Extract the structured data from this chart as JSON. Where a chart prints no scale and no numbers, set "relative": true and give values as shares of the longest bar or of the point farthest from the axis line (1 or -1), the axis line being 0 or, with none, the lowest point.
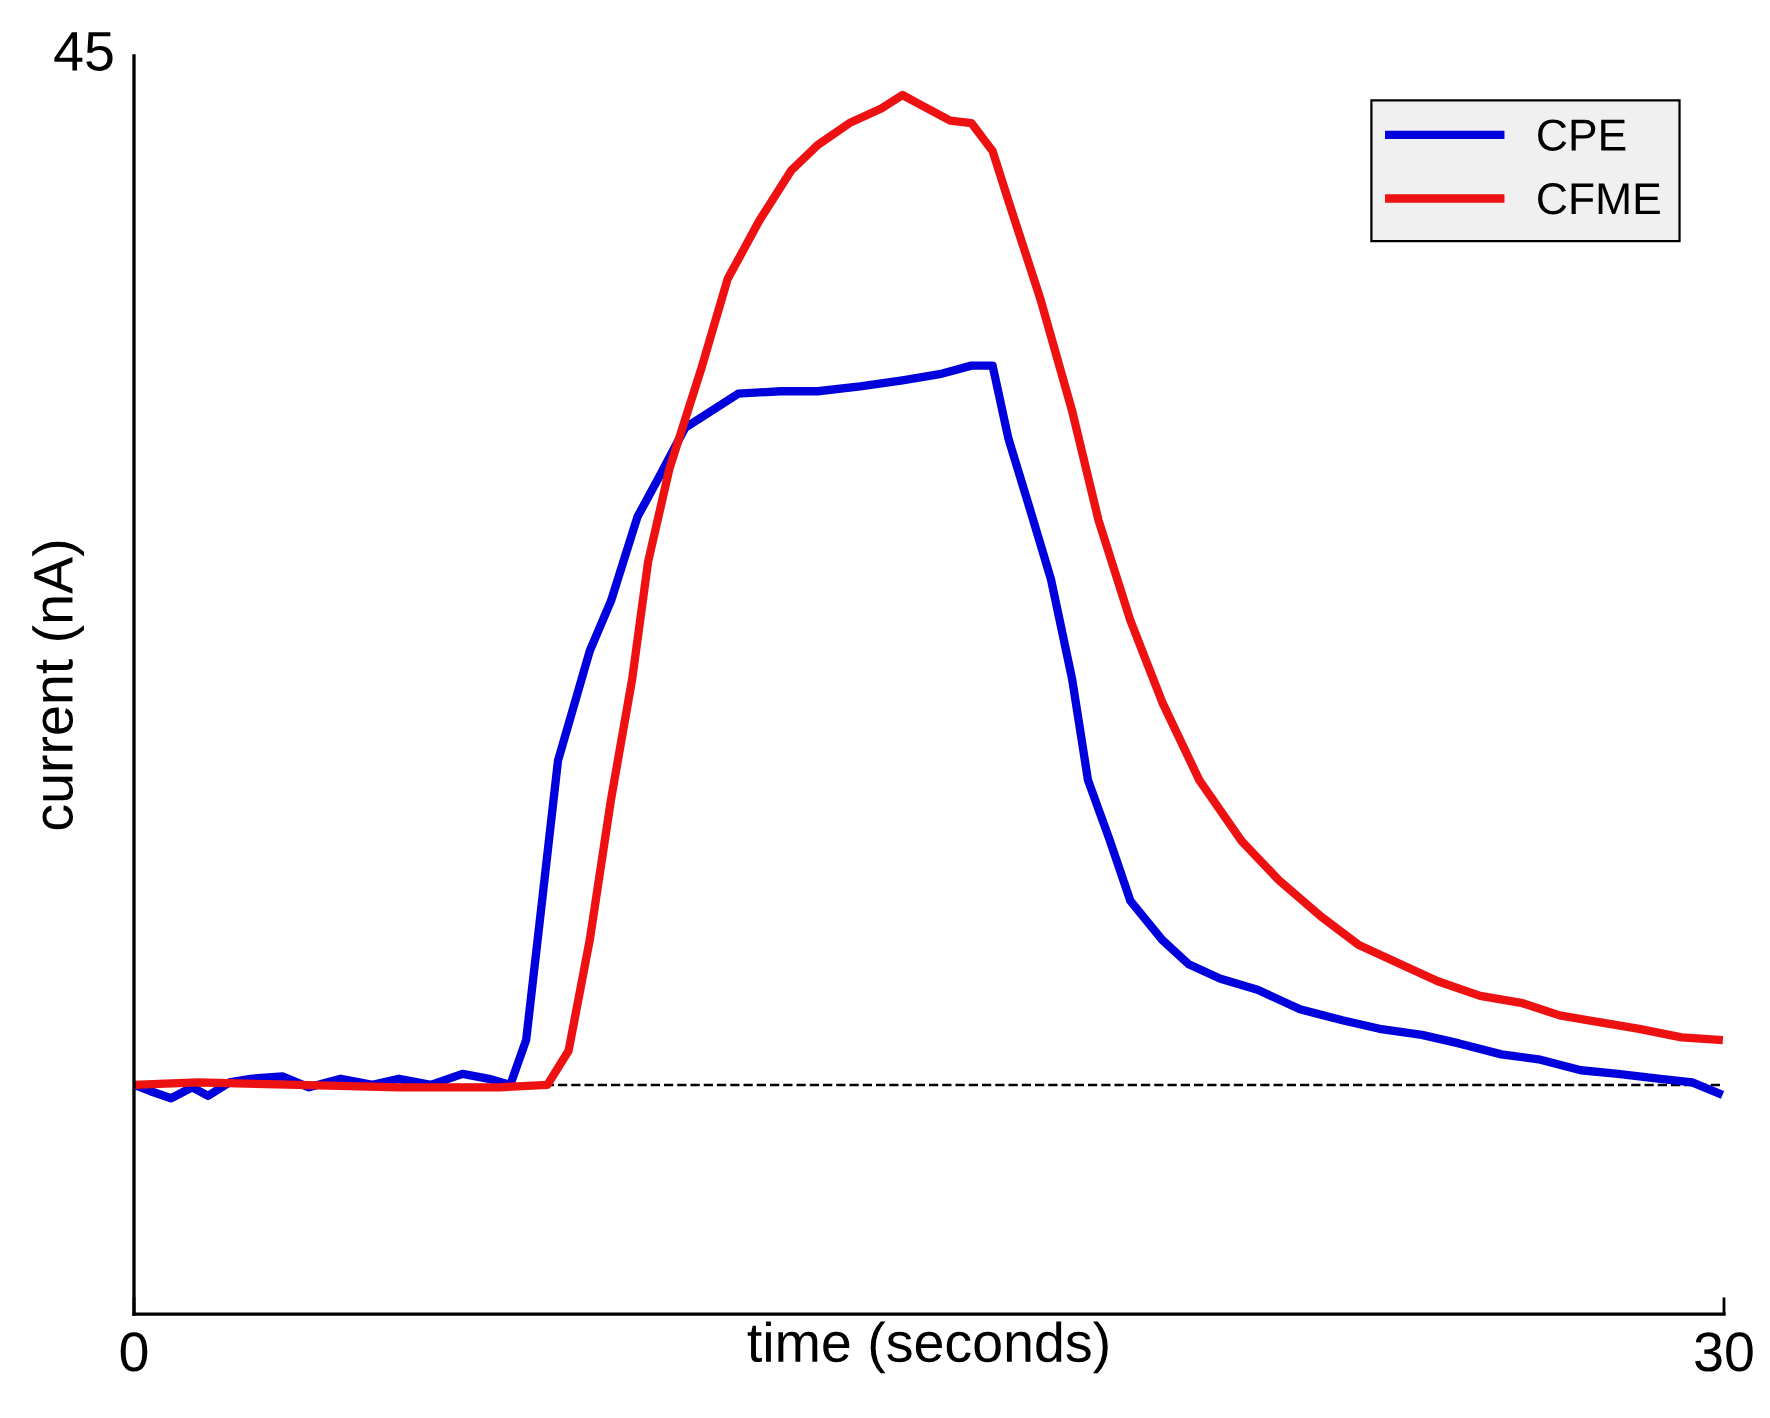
{
  "chart_data": {
    "type": "line",
    "xlabel": "time (seconds)",
    "ylabel": "current (nA)",
    "relative": true,
    "annotations": [
      "45"
    ],
    "xlim": [
      0,
      30
    ],
    "xticks": [
      0,
      30
    ],
    "legend": "top right",
    "line_style": "solid",
    "marker": "none",
    "ref_lines": [
      {
        "axis": "y",
        "value": 0.188,
        "color": "#000000",
        "line_style": "dashed"
      }
    ],
    "series": [
      {
        "name": "CPE",
        "color": "#0000dd",
        "x": [
          0,
          0.3,
          0.7,
          1.1,
          1.4,
          1.8,
          2.2,
          2.8,
          3.3,
          3.9,
          4.5,
          5.0,
          5.6,
          6.2,
          6.7,
          7.1,
          7.4,
          7.7,
          8.0,
          8.6,
          9.0,
          9.5,
          9.9,
          10.4,
          10.9,
          11.4,
          12.2,
          12.9,
          13.7,
          14.5,
          15.2,
          15.8,
          16.2,
          16.5,
          16.9,
          17.3,
          17.7,
          18.0,
          18.4,
          18.8,
          19.4,
          19.9,
          20.5,
          21.2,
          22.0,
          22.8,
          23.5,
          24.3,
          25.0,
          25.8,
          26.5,
          27.3,
          28.0,
          28.8,
          29.4,
          29.9
        ],
        "values": [
          0.188,
          0.183,
          0.177,
          0.186,
          0.179,
          0.19,
          0.193,
          0.195,
          0.186,
          0.193,
          0.188,
          0.193,
          0.188,
          0.197,
          0.193,
          0.188,
          0.225,
          0.339,
          0.454,
          0.544,
          0.585,
          0.654,
          0.686,
          0.727,
          0.741,
          0.755,
          0.757,
          0.757,
          0.761,
          0.766,
          0.771,
          0.778,
          0.778,
          0.718,
          0.661,
          0.603,
          0.521,
          0.438,
          0.39,
          0.339,
          0.307,
          0.287,
          0.275,
          0.266,
          0.25,
          0.241,
          0.234,
          0.229,
          0.222,
          0.213,
          0.209,
          0.2,
          0.197,
          0.193,
          0.19,
          0.181
        ]
      },
      {
        "name": "CFME",
        "color": "#ee1111",
        "x": [
          0,
          1.2,
          3.1,
          5.0,
          6.9,
          7.8,
          8.2,
          8.6,
          9.0,
          9.4,
          9.7,
          10.1,
          10.7,
          11.2,
          11.8,
          12.4,
          12.9,
          13.5,
          14.1,
          14.5,
          14.8,
          15.4,
          15.8,
          16.2,
          16.5,
          17.1,
          17.7,
          18.2,
          18.8,
          19.4,
          20.1,
          20.9,
          21.6,
          22.4,
          23.1,
          23.9,
          24.6,
          25.4,
          26.2,
          26.9,
          27.7,
          28.4,
          29.2,
          29.9
        ],
        "values": [
          0.188,
          0.19,
          0.188,
          0.186,
          0.186,
          0.188,
          0.216,
          0.307,
          0.422,
          0.521,
          0.617,
          0.693,
          0.775,
          0.849,
          0.897,
          0.938,
          0.959,
          0.977,
          0.989,
          1,
          0.993,
          0.979,
          0.977,
          0.954,
          0.913,
          0.833,
          0.741,
          0.651,
          0.569,
          0.502,
          0.438,
          0.388,
          0.356,
          0.326,
          0.303,
          0.287,
          0.273,
          0.261,
          0.255,
          0.245,
          0.239,
          0.234,
          0.227,
          0.225
        ]
      }
    ]
  }
}
